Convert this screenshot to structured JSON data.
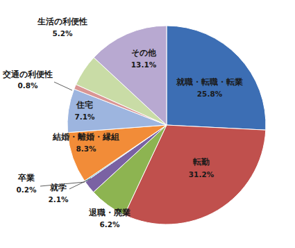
{
  "chart_data": {
    "type": "pie",
    "categories": [
      "就職・転職・転業",
      "転勤",
      "退職・廃業",
      "就学",
      "卒業",
      "結婚・離婚・縁組",
      "住宅",
      "交通の利便性",
      "生活の利便性",
      "その他"
    ],
    "values": [
      25.8,
      31.2,
      6.2,
      2.1,
      0.2,
      8.3,
      7.1,
      0.8,
      5.2,
      13.1
    ],
    "value_labels": [
      "25.8%",
      "31.2%",
      "6.2%",
      "2.1%",
      "0.2%",
      "8.3%",
      "7.1%",
      "0.8%",
      "5.2%",
      "13.1%"
    ],
    "colors": [
      "#3C6EB4",
      "#C0504D",
      "#8DB451",
      "#7A62A3",
      "#4BACC6",
      "#F28C38",
      "#9DB5DF",
      "#D99694",
      "#C9DCA6",
      "#B8A9D1"
    ],
    "data_labels": true
  }
}
